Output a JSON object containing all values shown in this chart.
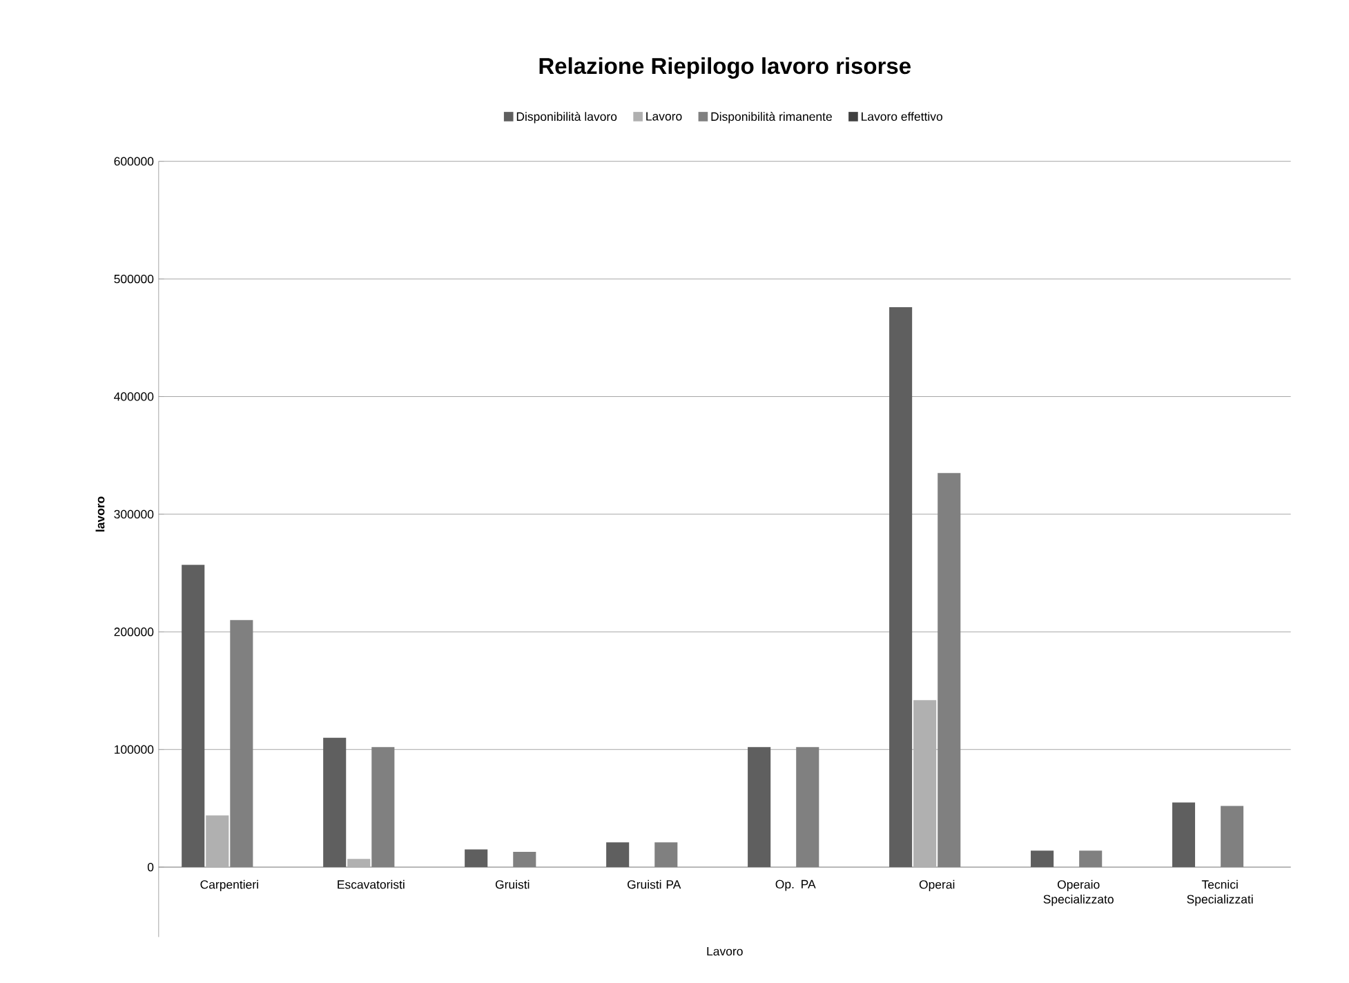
{
  "chart_data": {
    "type": "bar",
    "title": "Relazione Riepilogo lavoro risorse",
    "xlabel": "Lavoro",
    "ylabel": "lavoro",
    "categories": [
      "Carpentieri",
      "Escavatoristi",
      "Gruisti",
      "Gruisti PA",
      "Op. PA",
      "Operai",
      "Operaio Specializzato",
      "Tecnici Specializzati"
    ],
    "series": [
      {
        "name": "Disponibilità lavoro",
        "color": "#5f5f5f",
        "values": [
          257000,
          110000,
          15000,
          21000,
          102000,
          476000,
          14000,
          55000
        ]
      },
      {
        "name": "Lavoro",
        "color": "#b0b0b0",
        "values": [
          44000,
          7000,
          0,
          0,
          0,
          142000,
          0,
          0
        ]
      },
      {
        "name": "Disponibilità rimanente",
        "color": "#808080",
        "values": [
          210000,
          102000,
          13000,
          21000,
          102000,
          335000,
          14000,
          52000
        ]
      },
      {
        "name": "Lavoro effettivo",
        "color": "#404040",
        "values": [
          0,
          0,
          0,
          0,
          0,
          0,
          0,
          0
        ]
      }
    ],
    "ylim": [
      0,
      600000
    ],
    "yticks": [
      0,
      100000,
      200000,
      300000,
      400000,
      500000,
      600000
    ],
    "grid": "y",
    "legend": "top"
  }
}
